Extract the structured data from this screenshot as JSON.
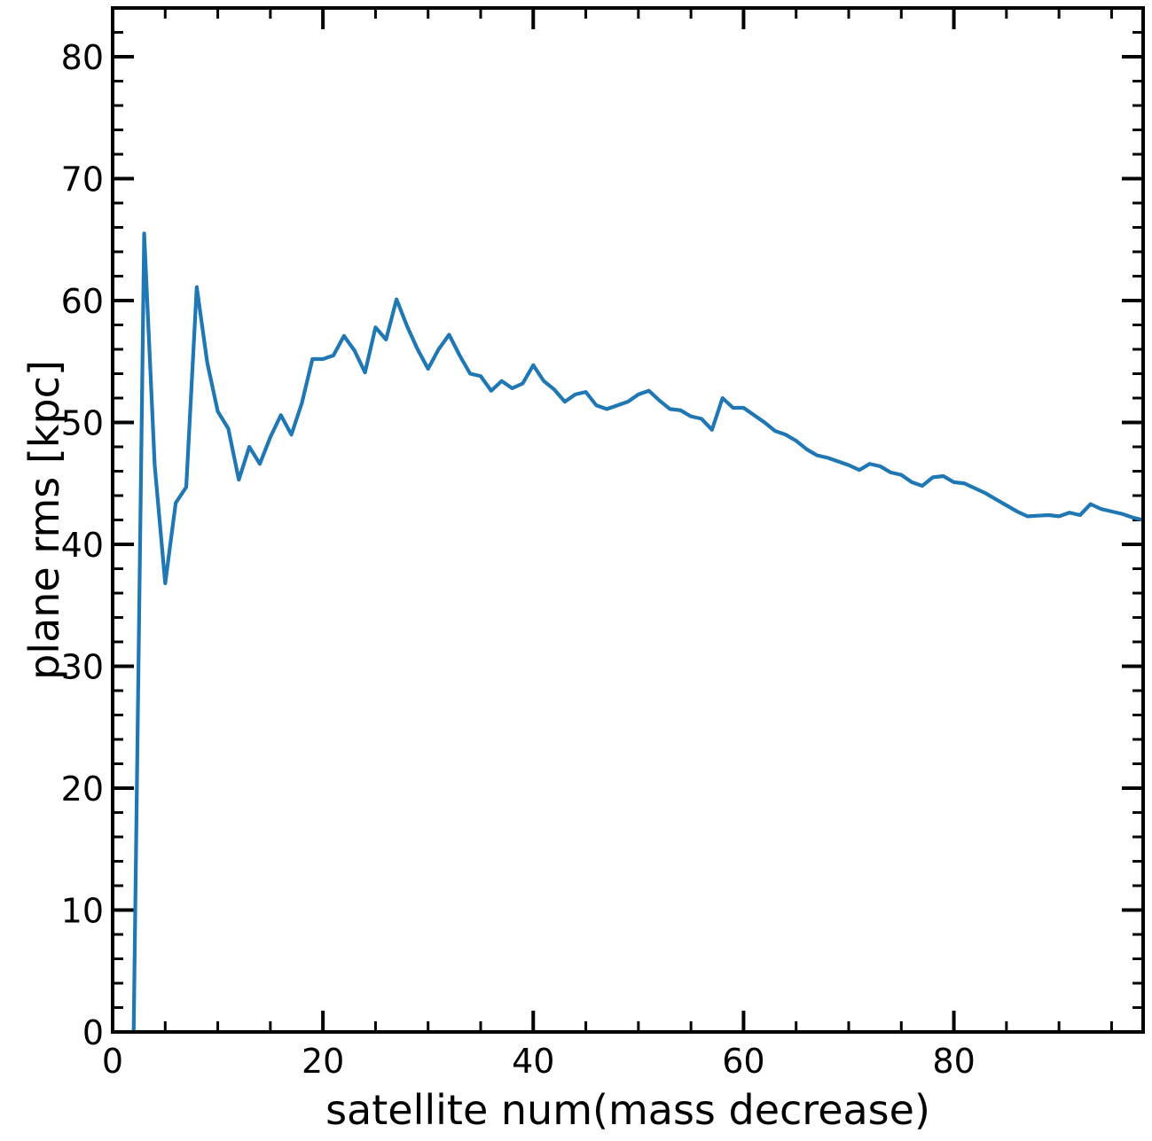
{
  "chart_data": {
    "type": "line",
    "title": "",
    "xlabel": "satellite num(mass decrease)",
    "ylabel": "plane rms [kpc]",
    "xlim": [
      0,
      98
    ],
    "ylim": [
      0,
      84
    ],
    "x_major_ticks": [
      0,
      20,
      40,
      60,
      80
    ],
    "y_major_ticks": [
      0,
      10,
      20,
      30,
      40,
      50,
      60,
      70,
      80
    ],
    "x_tick_labels": [
      "0",
      "20",
      "40",
      "60",
      "80"
    ],
    "y_tick_labels": [
      "0",
      "10",
      "20",
      "30",
      "40",
      "50",
      "60",
      "70",
      "80"
    ],
    "x_minor_step": 5,
    "y_minor_step": 2,
    "grid": false,
    "legend": "none",
    "series": [
      {
        "color": "#1f77b4",
        "x": [
          2,
          3,
          4,
          5,
          6,
          7,
          8,
          9,
          10,
          11,
          12,
          13,
          14,
          15,
          16,
          17,
          18,
          19,
          20,
          21,
          22,
          23,
          24,
          25,
          26,
          27,
          28,
          29,
          30,
          31,
          32,
          33,
          34,
          35,
          36,
          37,
          38,
          39,
          40,
          41,
          42,
          43,
          44,
          45,
          46,
          47,
          48,
          49,
          50,
          51,
          52,
          53,
          54,
          55,
          56,
          57,
          58,
          59,
          60,
          61,
          62,
          63,
          64,
          65,
          66,
          67,
          68,
          69,
          70,
          71,
          72,
          73,
          74,
          75,
          76,
          77,
          78,
          79,
          80,
          81,
          82,
          83,
          84,
          85,
          86,
          87,
          88,
          89,
          90,
          91,
          92,
          93,
          94,
          95,
          96,
          97,
          98
        ],
        "y": [
          0,
          65.5,
          46.5,
          36.8,
          43.4,
          44.7,
          61.1,
          54.9,
          50.9,
          49.5,
          45.3,
          48.0,
          46.6,
          48.8,
          50.6,
          49.0,
          51.6,
          55.2,
          55.2,
          55.5,
          57.1,
          55.9,
          54.1,
          57.8,
          56.8,
          60.1,
          57.9,
          56.0,
          54.4,
          56.0,
          57.2,
          55.5,
          54.0,
          53.8,
          52.6,
          53.4,
          52.8,
          53.2,
          54.7,
          53.4,
          52.7,
          51.7,
          52.3,
          52.5,
          51.4,
          51.1,
          51.4,
          51.7,
          52.3,
          52.6,
          51.8,
          51.1,
          51.0,
          50.5,
          50.3,
          49.4,
          52.0,
          51.2,
          51.2,
          50.6,
          50.0,
          49.3,
          49.0,
          48.5,
          47.8,
          47.3,
          47.1,
          46.8,
          46.5,
          46.1,
          46.6,
          46.4,
          45.9,
          45.7,
          45.1,
          44.8,
          45.5,
          45.6,
          45.1,
          45.0,
          44.6,
          44.2,
          43.7,
          43.2,
          42.7,
          42.3,
          42.35,
          42.4,
          42.3,
          42.6,
          42.4,
          43.3,
          42.9,
          42.7,
          42.5,
          42.2,
          42.0
        ]
      }
    ]
  }
}
